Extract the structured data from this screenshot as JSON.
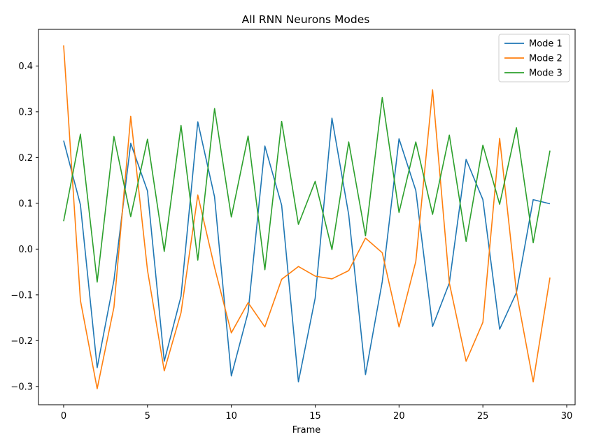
{
  "chart_data": {
    "type": "line",
    "title": "All RNN Neurons Modes",
    "xlabel": "Frame",
    "ylabel": "",
    "xlim": [
      -1.5,
      30.5
    ],
    "ylim": [
      -0.34,
      0.48
    ],
    "xticks": [
      0,
      5,
      10,
      15,
      20,
      25,
      30
    ],
    "xtick_labels": [
      "0",
      "5",
      "10",
      "15",
      "20",
      "25",
      "30"
    ],
    "yticks": [
      -0.3,
      -0.2,
      -0.1,
      0.0,
      0.1,
      0.2,
      0.3,
      0.4
    ],
    "ytick_labels": [
      "−0.3",
      "−0.2",
      "−0.1",
      "0.0",
      "0.1",
      "0.2",
      "0.3",
      "0.4"
    ],
    "grid": false,
    "legend_position": "top-right",
    "x": [
      0,
      1,
      2,
      3,
      4,
      5,
      6,
      7,
      8,
      9,
      10,
      11,
      12,
      13,
      14,
      15,
      16,
      17,
      18,
      19,
      20,
      21,
      22,
      23,
      24,
      25,
      26,
      27,
      28,
      29
    ],
    "series": [
      {
        "name": "Mode 1",
        "color": "#1f77b4",
        "values": [
          0.237,
          0.097,
          -0.259,
          -0.068,
          0.231,
          0.127,
          -0.245,
          -0.103,
          0.278,
          0.114,
          -0.277,
          -0.138,
          0.225,
          0.096,
          -0.29,
          -0.107,
          0.286,
          0.075,
          -0.274,
          -0.071,
          0.241,
          0.128,
          -0.169,
          -0.074,
          0.196,
          0.108,
          -0.175,
          -0.095,
          0.108,
          0.099
        ]
      },
      {
        "name": "Mode 2",
        "color": "#ff7f0e",
        "values": [
          0.445,
          -0.112,
          -0.305,
          -0.127,
          0.29,
          -0.046,
          -0.266,
          -0.139,
          0.118,
          -0.04,
          -0.183,
          -0.117,
          -0.17,
          -0.066,
          -0.038,
          -0.059,
          -0.065,
          -0.047,
          0.024,
          -0.008,
          -0.17,
          -0.027,
          0.348,
          -0.074,
          -0.245,
          -0.16,
          0.242,
          -0.094,
          -0.29,
          -0.062
        ]
      },
      {
        "name": "Mode 3",
        "color": "#2ca02c",
        "values": [
          0.061,
          0.251,
          -0.072,
          0.246,
          0.071,
          0.24,
          -0.005,
          0.27,
          -0.024,
          0.307,
          0.07,
          0.247,
          -0.045,
          0.279,
          0.054,
          0.148,
          -0.001,
          0.234,
          0.029,
          0.331,
          0.08,
          0.234,
          0.076,
          0.249,
          0.017,
          0.227,
          0.098,
          0.265,
          0.014,
          0.215
        ]
      }
    ]
  }
}
